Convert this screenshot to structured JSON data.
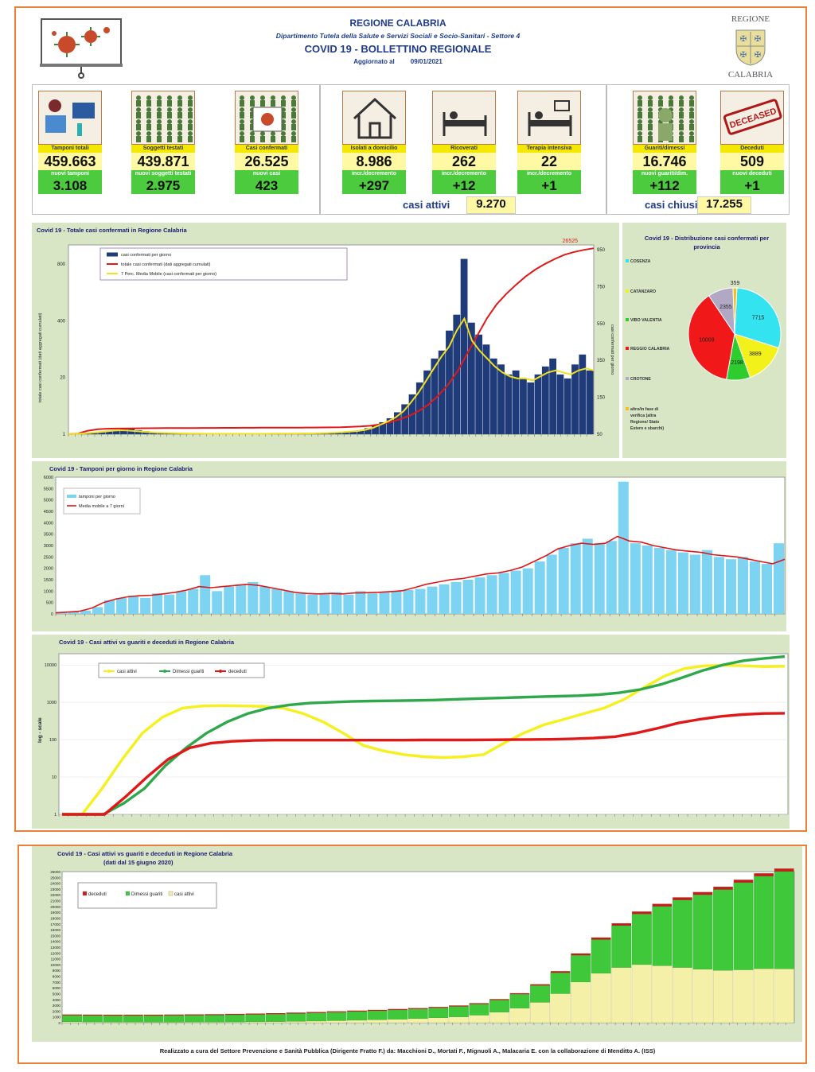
{
  "header": {
    "region": "REGIONE CALABRIA",
    "dept": "Dipartimento Tutela della Salute e Servizi Sociali e Socio-Sanitari - Settore 4",
    "bulletin": "COVID 19 - BOLLETTINO REGIONALE",
    "updated_label": "Aggiornato al",
    "updated_date": "09/01/2021",
    "logo_top": "REGIONE",
    "logo_bottom": "CALABRIA"
  },
  "kpis": [
    {
      "label": "Tamponi totali",
      "value": "459.663",
      "label2": "nuovi tamponi",
      "value2": "3.108",
      "icon": "lab-test-icon"
    },
    {
      "label": "Soggetti testati",
      "value": "439.871",
      "label2": "nuovi soggetti testati",
      "value2": "2.975",
      "icon": "people-grid-icon"
    },
    {
      "label": "Casi confermati",
      "value": "26.525",
      "label2": "nuovi casi",
      "value2": "423",
      "icon": "virus-person-icon"
    },
    {
      "label": "Isolati a domicilio",
      "value": "8.986",
      "label2": "incr./decremento",
      "value2": "+297",
      "icon": "house-icon"
    },
    {
      "label": "Ricoverati",
      "value": "262",
      "label2": "incr./decremento",
      "value2": "+12",
      "icon": "hospital-bed-icon"
    },
    {
      "label": "Terapia intensiva",
      "value": "22",
      "label2": "incr./decremento",
      "value2": "+1",
      "icon": "icu-bed-icon"
    },
    {
      "label": "Guariti/dimessi",
      "value": "16.746",
      "label2": "nuovi guariti/dim.",
      "value2": "+112",
      "icon": "recovered-person-icon"
    },
    {
      "label": "Deceduti",
      "value": "509",
      "label2": "nuovi deceduti",
      "value2": "+1",
      "icon": "deceased-stamp-icon"
    }
  ],
  "summary": {
    "active_label": "casi attivi",
    "active_value": "9.270",
    "closed_label": "casi chiusi",
    "closed_value": "17.255"
  },
  "stamp_text": "DECEASED",
  "chart_data": [
    {
      "type": "bar",
      "title": "Covid 19 - Totale casi confermati in Regione Calabria",
      "ylabel": "totale casi confermati (dati aggregati cumulati)",
      "y2label": "casi confermati per giorno",
      "annotation": "26525",
      "y_ticks": [
        "800",
        "400",
        "20",
        "1"
      ],
      "y2_ticks": [
        "950",
        "750",
        "550",
        "350",
        "150",
        "50"
      ],
      "legend": [
        "casi confermati per giorno",
        "totale casi confermati (dati aggregati cumulati)",
        "7 Perc. Media Mobile (casi confermati per giorno)"
      ],
      "series": [
        {
          "name": "casi confermati per giorno",
          "values": [
            0,
            2,
            5,
            8,
            12,
            18,
            22,
            30,
            26,
            20,
            15,
            10,
            8,
            6,
            5,
            4,
            3,
            3,
            2,
            2,
            2,
            2,
            2,
            1,
            1,
            2,
            2,
            3,
            3,
            4,
            3,
            3,
            4,
            5,
            6,
            8,
            10,
            12,
            15,
            20,
            30,
            45,
            60,
            80,
            110,
            150,
            200,
            260,
            320,
            380,
            420,
            520,
            600,
            880,
            560,
            500,
            450,
            380,
            350,
            300,
            320,
            280,
            260,
            300,
            340,
            380,
            300,
            280,
            350,
            400,
            320
          ]
        },
        {
          "name": "totale casi confermati (dati aggregati cumulati)",
          "values": [
            1,
            100,
            500,
            700,
            780,
            800,
            820,
            840,
            850,
            860,
            870,
            880,
            885,
            890,
            895,
            900,
            905,
            910,
            915,
            920,
            925,
            930,
            935,
            940,
            945,
            950,
            960,
            980,
            1000,
            1050,
            1100,
            1200,
            1400,
            1700,
            2100,
            2600,
            3300,
            4200,
            5500,
            7000,
            9000,
            11500,
            14000,
            16500,
            18500,
            20000,
            21300,
            22500,
            23500,
            24300,
            25000,
            25600,
            26000,
            26300,
            26525
          ]
        },
        {
          "name": "7 Perc. Media Mobile (casi confermati per giorno)",
          "values": [
            0,
            2,
            4,
            7,
            10,
            14,
            18,
            20,
            18,
            15,
            12,
            9,
            7,
            6,
            5,
            4,
            3,
            3,
            2,
            2,
            2,
            2,
            2,
            2,
            2,
            2,
            2,
            3,
            3,
            3,
            3,
            4,
            4,
            5,
            6,
            8,
            10,
            13,
            16,
            22,
            32,
            48,
            65,
            85,
            115,
            160,
            210,
            270,
            330,
            390,
            440,
            520,
            580,
            470,
            420,
            380,
            340,
            310,
            290,
            280,
            280,
            270,
            290,
            310,
            320,
            310,
            300,
            320,
            330,
            320
          ]
        }
      ]
    },
    {
      "type": "pie",
      "title": "Covid 19 - Distribuzione casi confermati per provincia",
      "labels": [
        "COSENZA",
        "CATANZARO",
        "VIBO VALENTIA",
        "REGGIO CALABRIA",
        "CROTONE",
        "altro/in fase di verifica (altra Regione/ Stato Estero e sbarchi)"
      ],
      "values": [
        7715,
        3889,
        2198,
        10009,
        2355,
        359
      ],
      "colors": [
        "#33e4f0",
        "#f2f21a",
        "#2ecc2e",
        "#f01818",
        "#b0a8c4",
        "#f0c020"
      ]
    },
    {
      "type": "bar",
      "title": "Covid 19 - Tamponi per giorno in Regione Calabria",
      "y_ticks": [
        "6000",
        "5500",
        "5000",
        "4500",
        "4000",
        "3500",
        "3000",
        "2500",
        "2000",
        "1500",
        "1000",
        "500",
        "0"
      ],
      "ylim": [
        0,
        6000
      ],
      "legend": [
        "tamponi per giorno",
        "Media mobile a 7 giorni"
      ],
      "series": [
        {
          "name": "tamponi per giorno",
          "values": [
            50,
            100,
            150,
            300,
            600,
            700,
            800,
            700,
            900,
            850,
            1000,
            1100,
            1700,
            1000,
            1200,
            1300,
            1400,
            1200,
            1100,
            1000,
            900,
            850,
            900,
            950,
            850,
            1000,
            900,
            950,
            1000,
            1050,
            1100,
            1200,
            1300,
            1400,
            1500,
            1600,
            1700,
            1800,
            1900,
            2000,
            2300,
            2600,
            2900,
            3100,
            3300,
            3100,
            3200,
            5800,
            3100,
            3000,
            2900,
            2800,
            2700,
            2600,
            2800,
            2500,
            2400,
            2500,
            2300,
            2200,
            3100
          ]
        },
        {
          "name": "Media mobile a 7 giorni",
          "values": [
            50,
            80,
            120,
            250,
            500,
            650,
            750,
            800,
            820,
            880,
            950,
            1050,
            1200,
            1150,
            1200,
            1250,
            1300,
            1250,
            1150,
            1050,
            950,
            900,
            880,
            900,
            880,
            920,
            930,
            950,
            980,
            1020,
            1150,
            1300,
            1400,
            1500,
            1550,
            1650,
            1750,
            1800,
            1900,
            2050,
            2300,
            2550,
            2850,
            3000,
            3100,
            3050,
            3100,
            3400,
            3200,
            3150,
            3000,
            2900,
            2800,
            2750,
            2700,
            2600,
            2550,
            2500,
            2400,
            2300,
            2200,
            2400
          ]
        }
      ]
    },
    {
      "type": "line",
      "title": "Covid 19 - Casi attivi vs guariti e deceduti in Regione Calabria",
      "ylabel": "log - scale",
      "y_ticks": [
        "10000",
        "1000",
        "100",
        "10",
        "1"
      ],
      "legend": [
        "casi attivi",
        "Dimessi guariti",
        "deceduti"
      ],
      "series": [
        {
          "name": "casi attivi",
          "values": [
            1,
            1,
            5,
            30,
            150,
            400,
            700,
            800,
            820,
            800,
            780,
            700,
            500,
            300,
            150,
            70,
            50,
            40,
            35,
            33,
            35,
            40,
            80,
            150,
            250,
            350,
            500,
            700,
            1200,
            2500,
            5000,
            8000,
            9500,
            9800,
            9500,
            9000,
            9200
          ]
        },
        {
          "name": "Dimessi guariti",
          "values": [
            1,
            1,
            1,
            2,
            5,
            20,
            60,
            150,
            300,
            500,
            700,
            850,
            950,
            1000,
            1050,
            1080,
            1100,
            1120,
            1150,
            1200,
            1250,
            1300,
            1350,
            1400,
            1450,
            1500,
            1600,
            1800,
            2200,
            3000,
            4500,
            7000,
            10000,
            13000,
            15000,
            16746
          ]
        },
        {
          "name": "deceduti",
          "values": [
            1,
            1,
            1,
            3,
            10,
            30,
            60,
            80,
            90,
            95,
            97,
            97,
            97,
            97,
            97,
            97,
            97,
            98,
            98,
            98,
            99,
            100,
            101,
            102,
            105,
            110,
            120,
            150,
            200,
            280,
            350,
            420,
            470,
            500,
            509
          ]
        }
      ]
    },
    {
      "type": "area",
      "title": "Covid 19 - Casi attivi vs guariti e deceduti in Regione Calabria",
      "subtitle": "(dati dal 15 giugno 2020)",
      "y_ticks": [
        "26000",
        "25000",
        "24000",
        "23000",
        "22000",
        "21000",
        "20000",
        "19000",
        "18000",
        "17000",
        "16000",
        "15000",
        "14000",
        "13000",
        "12000",
        "11000",
        "10000",
        "9000",
        "8000",
        "7000",
        "6000",
        "5000",
        "4000",
        "3000",
        "2000",
        "1000",
        "0"
      ],
      "ylim": [
        0,
        26000
      ],
      "legend": [
        "deceduti",
        "Dimessi guariti",
        "casi attivi"
      ],
      "series": [
        {
          "name": "casi attivi",
          "values": [
            150,
            120,
            100,
            90,
            80,
            80,
            90,
            100,
            120,
            150,
            180,
            220,
            280,
            350,
            420,
            500,
            600,
            700,
            850,
            1000,
            1300,
            1800,
            2500,
            3500,
            5000,
            7000,
            8500,
            9500,
            10000,
            9800,
            9500,
            9200,
            9000,
            9100,
            9300,
            9270
          ]
        },
        {
          "name": "Dimessi guariti",
          "values": [
            1100,
            1110,
            1120,
            1130,
            1140,
            1160,
            1180,
            1200,
            1230,
            1260,
            1300,
            1350,
            1400,
            1450,
            1500,
            1550,
            1600,
            1650,
            1700,
            1800,
            1900,
            2100,
            2400,
            2900,
            3600,
            4600,
            5800,
            7200,
            8700,
            10200,
            11600,
            12800,
            13900,
            15000,
            15900,
            16746
          ]
        },
        {
          "name": "deceduti",
          "values": [
            97,
            97,
            97,
            97,
            97,
            97,
            98,
            98,
            98,
            99,
            100,
            100,
            101,
            102,
            103,
            105,
            108,
            110,
            115,
            120,
            130,
            150,
            180,
            220,
            270,
            320,
            360,
            400,
            430,
            450,
            470,
            485,
            495,
            500,
            505,
            509
          ]
        }
      ]
    }
  ],
  "footer": "Realizzato a cura del Settore Prevenzione e Sanità Pubblica (Dirigente Fratto F.) da: Macchioni D., Mortati F., Mignuoli A., Malacaria E. con la collaborazione di Menditto A. (ISS)"
}
